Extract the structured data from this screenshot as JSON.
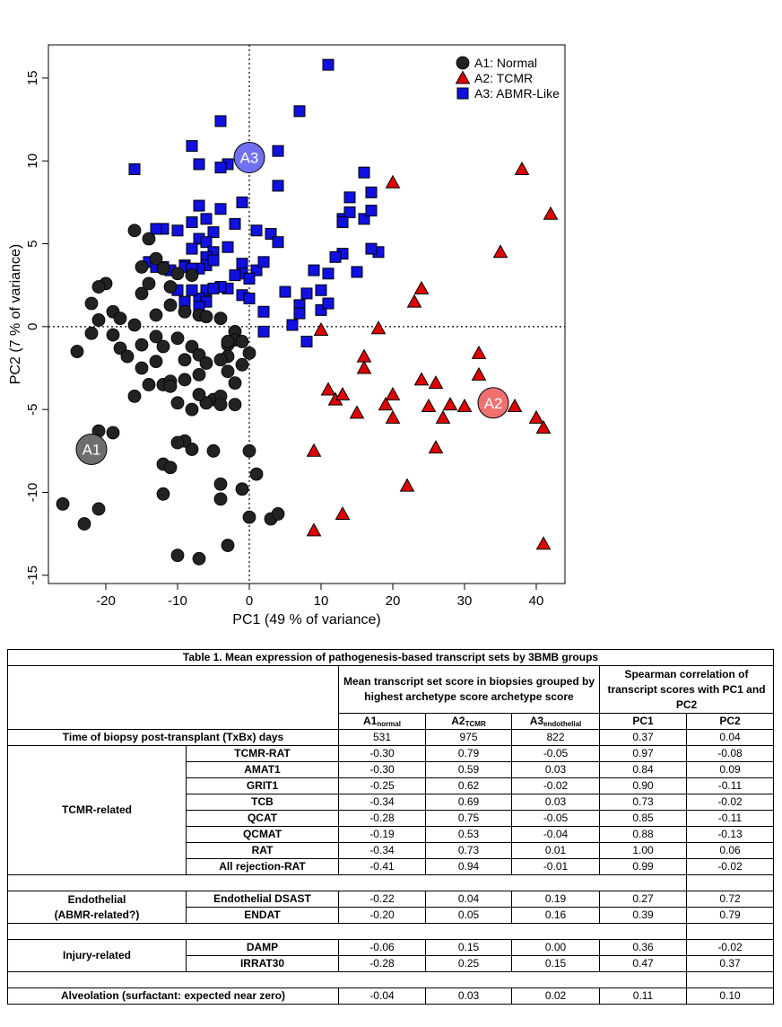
{
  "chart_data": {
    "type": "scatter",
    "xlabel": "PC1 (49 % of variance)",
    "ylabel": "PC2 (7 % of variance)",
    "xlim": [
      -28,
      44
    ],
    "ylim": [
      -15.5,
      17
    ],
    "x_ticks": [
      -20,
      -10,
      0,
      10,
      20,
      30,
      40
    ],
    "y_ticks": [
      -15,
      -10,
      -5,
      0,
      5,
      10,
      15
    ],
    "reference_lines": {
      "x": 0,
      "y": 0,
      "style": "dotted"
    },
    "legend_position": "top-right",
    "series": [
      {
        "name": "A1: Normal",
        "marker": "circle",
        "color": "#222222",
        "x": [
          -16,
          -14,
          -13,
          -12,
          -15,
          -10,
          -8,
          -11,
          -14,
          -15,
          -20,
          -21,
          -22,
          -22,
          -19,
          -21,
          -24,
          -18,
          -17,
          -15,
          -13,
          -16,
          -12,
          -11,
          -9,
          -7,
          -19,
          -18,
          -16,
          -13,
          -11,
          -9,
          -7,
          -6,
          -4,
          -2,
          -2,
          -3,
          -1,
          0,
          -1,
          -3,
          -5,
          -2,
          -4,
          -6,
          -8,
          -6,
          -7,
          -4,
          -2,
          -3,
          -8,
          -10,
          -12,
          -7,
          -6,
          -9,
          -4,
          -3,
          -15,
          -13,
          -21,
          -19,
          -22,
          -26,
          -23,
          -21,
          -12,
          -11,
          -8,
          -4,
          -4,
          -1,
          0,
          1,
          0,
          3,
          4,
          -3,
          -10,
          -7,
          -12,
          -9,
          -10,
          -5,
          -10,
          -14,
          -11
        ],
        "y": [
          5.8,
          5.3,
          4.1,
          3.5,
          3.6,
          3.2,
          3.1,
          2.4,
          2.6,
          2.0,
          2.6,
          2.4,
          1.4,
          -0.4,
          -0.5,
          0.4,
          -1.5,
          -1.3,
          -1.8,
          -2.5,
          -2.1,
          -4.2,
          -3.5,
          -3.3,
          -3.2,
          -2.9,
          0.9,
          0.5,
          0.1,
          0.7,
          1.3,
          0.9,
          0.7,
          0.6,
          0.5,
          -0.3,
          -0.8,
          -1.1,
          -0.9,
          -1.6,
          -2.3,
          -2.7,
          -4.4,
          -3.4,
          -4.2,
          -4.6,
          -5.0,
          -4.6,
          -4.1,
          -4.7,
          -4.7,
          -1.8,
          -1.2,
          -0.7,
          -1.2,
          -1.7,
          -2.2,
          -2.0,
          -2.0,
          -0.9,
          -1.1,
          -0.6,
          -6.3,
          -6.4,
          -7.1,
          -10.7,
          -11.9,
          -11.0,
          -8.3,
          -8.5,
          -7.4,
          -9.5,
          -10.4,
          -9.8,
          -7.5,
          -8.9,
          -11.5,
          -11.6,
          -11.3,
          -13.2,
          -13.8,
          -14.0,
          -10.1,
          -6.9,
          -7.0,
          -7.5,
          -4.6,
          -3.5,
          -3.6
        ],
        "label_marker": {
          "text": "A1",
          "x": -22,
          "y": -7.4,
          "color": "#6e6e6e"
        }
      },
      {
        "name": "A2: TCMR",
        "marker": "triangle",
        "color": "#e00000",
        "x": [
          20,
          38,
          42,
          35,
          24,
          23,
          18,
          10,
          16,
          16,
          11,
          12,
          13,
          20,
          19,
          20,
          15,
          9,
          24,
          26,
          25,
          28,
          27,
          26,
          32,
          32,
          37,
          40,
          41,
          22,
          30,
          41,
          13,
          9
        ],
        "y": [
          8.7,
          9.5,
          6.8,
          4.5,
          2.3,
          1.5,
          -0.1,
          -0.2,
          -1.8,
          -2.5,
          -3.8,
          -4.4,
          -4.1,
          -4.1,
          -4.7,
          -5.5,
          -5.2,
          -7.5,
          -3.2,
          -3.4,
          -4.8,
          -4.7,
          -5.5,
          -7.3,
          -1.6,
          -2.9,
          -4.8,
          -5.5,
          -6.1,
          -9.6,
          -4.8,
          -13.1,
          -11.3,
          -12.3
        ],
        "label_marker": {
          "text": "A2",
          "x": 34,
          "y": -4.6,
          "color": "#f07070"
        }
      },
      {
        "name": "A3: ABMR-Like",
        "marker": "square",
        "color": "#1010e0",
        "x": [
          11,
          7,
          -4,
          -16,
          -8,
          -7,
          -3,
          -4,
          4,
          4,
          -1,
          -4,
          -7,
          -6,
          -5,
          -8,
          -10,
          -12,
          -13,
          -14,
          -12,
          -11,
          -13,
          -7,
          -8,
          -6,
          -5,
          -3,
          -2,
          1,
          3,
          4,
          -1,
          -1,
          1,
          2,
          0,
          -1,
          -3,
          -4,
          -6,
          -7,
          -5,
          -6,
          -7,
          -9,
          -8,
          -10,
          -9,
          -9,
          -8,
          -6,
          -6,
          -7,
          -8,
          -5,
          -2,
          0,
          0,
          2,
          5,
          7,
          8,
          10,
          10,
          9,
          11,
          13,
          13,
          14,
          14,
          13,
          17,
          16,
          16,
          17,
          18,
          17,
          15,
          12,
          11,
          7,
          6,
          2,
          8
        ],
        "y": [
          15.8,
          13.0,
          12.4,
          9.5,
          10.9,
          9.8,
          9.8,
          9.6,
          10.6,
          8.5,
          7.5,
          7.1,
          7.3,
          6.5,
          5.7,
          6.3,
          5.8,
          5.9,
          5.9,
          3.9,
          3.6,
          3.4,
          3.6,
          5.3,
          4.7,
          5.1,
          4.5,
          4.8,
          6.2,
          5.8,
          5.6,
          5.1,
          3.8,
          3.2,
          3.4,
          3.9,
          2.9,
          1.9,
          2.3,
          2.4,
          2.2,
          1.7,
          2.3,
          1.5,
          1.2,
          1.5,
          2.2,
          2.2,
          3.7,
          3.6,
          3.4,
          4.2,
          3.7,
          3.5,
          3.5,
          4.0,
          3.1,
          2.9,
          1.7,
          0.9,
          2.1,
          1.3,
          2.0,
          1.0,
          2.2,
          3.4,
          3.2,
          4.4,
          6.5,
          6.9,
          7.8,
          6.3,
          8.1,
          9.3,
          6.5,
          7.0,
          4.5,
          4.7,
          3.3,
          4.2,
          1.4,
          0.8,
          0.1,
          -0.3,
          -0.9
        ],
        "label_marker": {
          "text": "A3",
          "x": 0,
          "y": 10.2,
          "color": "#7070f0"
        }
      }
    ]
  },
  "table": {
    "caption": "Table 1. Mean expression of pathogenesis-based transcript sets by 3BMB groups",
    "header_mean": "Mean transcript set score in biopsies grouped by highest archetype score archetype score",
    "header_corr": "Spearman correlation of transcript scores with PC1 and PC2",
    "col_a1": "A1",
    "col_a1_sub": "normal",
    "col_a2": "A2",
    "col_a2_sub": "TCMR",
    "col_a3": "A3",
    "col_a3_sub": "endothelial",
    "col_pc1": "PC1",
    "col_pc2": "PC2",
    "time_row": {
      "label": "Time of biopsy post-transplant  (TxBx) days",
      "a1": "531",
      "a2": "975",
      "a3": "822",
      "pc1": "0.37",
      "pc2": "0.04"
    },
    "tcmr_group": "TCMR-related",
    "tcmr_rows": [
      {
        "name": "TCMR-RAT",
        "a1": "-0.30",
        "a2": "0.79",
        "a3": "-0.05",
        "pc1": "0.97",
        "pc2": "-0.08"
      },
      {
        "name": "AMAT1",
        "a1": "-0.30",
        "a2": "0.59",
        "a3": "0.03",
        "pc1": "0.84",
        "pc2": "0.09"
      },
      {
        "name": "GRIT1",
        "a1": "-0.25",
        "a2": "0.62",
        "a3": "-0.02",
        "pc1": "0.90",
        "pc2": "-0.11"
      },
      {
        "name": "TCB",
        "a1": "-0.34",
        "a2": "0.69",
        "a3": "0.03",
        "pc1": "0.73",
        "pc2": "-0.02"
      },
      {
        "name": "QCAT",
        "a1": "-0.28",
        "a2": "0.75",
        "a3": "-0.05",
        "pc1": "0.85",
        "pc2": "-0.11"
      },
      {
        "name": "QCMAT",
        "a1": "-0.19",
        "a2": "0.53",
        "a3": "-0.04",
        "pc1": "0.88",
        "pc2": "-0.13"
      },
      {
        "name": "RAT",
        "a1": "-0.34",
        "a2": "0.73",
        "a3": "0.01",
        "pc1": "1.00",
        "pc2": "0.06"
      },
      {
        "name": "All rejection-RAT",
        "a1": "-0.41",
        "a2": "0.94",
        "a3": "-0.01",
        "pc1": "0.99",
        "pc2": "-0.02"
      }
    ],
    "endo_group_1": "Endothelial",
    "endo_group_2": "(ABMR-related?)",
    "endo_rows": [
      {
        "name": "Endothelial DSAST",
        "a1": "-0.22",
        "a2": "0.04",
        "a3": "0.19",
        "pc1": "0.27",
        "pc2": "0.72"
      },
      {
        "name": "ENDAT",
        "a1": "-0.20",
        "a2": "0.05",
        "a3": "0.16",
        "pc1": "0.39",
        "pc2": "0.79"
      }
    ],
    "injury_group": "Injury-related",
    "injury_rows": [
      {
        "name": "DAMP",
        "a1": "-0.06",
        "a2": "0.15",
        "a3": "0.00",
        "pc1": "0.36",
        "pc2": "-0.02"
      },
      {
        "name": "IRRAT30",
        "a1": "-0.28",
        "a2": "0.25",
        "a3": "0.15",
        "pc1": "0.47",
        "pc2": "0.37"
      }
    ],
    "alveo_row": {
      "label": "Alveolation (surfactant:  expected near zero)",
      "a1": "-0.04",
      "a2": "0.03",
      "a3": "0.02",
      "pc1": "0.11",
      "pc2": "0.10"
    }
  }
}
